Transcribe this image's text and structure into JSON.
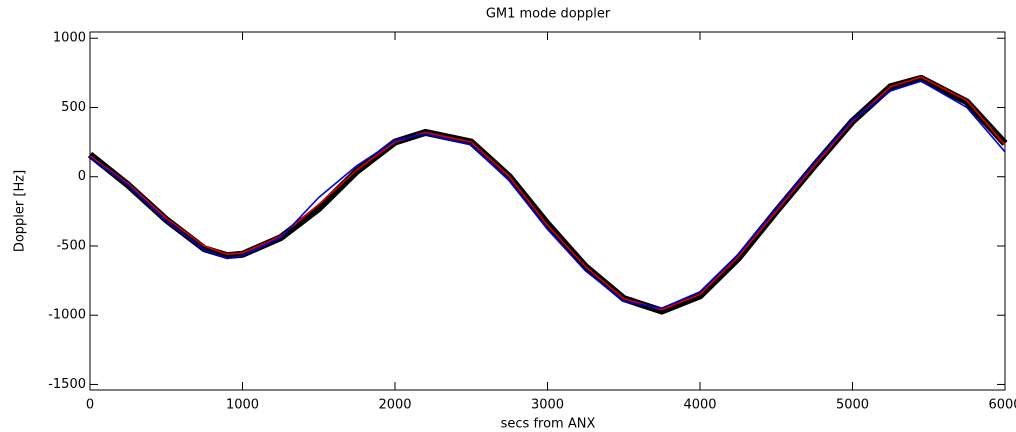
{
  "chart_data": {
    "type": "line",
    "title": "GM1 mode doppler",
    "x_label": "secs from ANX",
    "y_label": "Doppler [Hz]",
    "x": [
      0,
      250,
      500,
      750,
      900,
      1000,
      1250,
      1500,
      1750,
      2000,
      2200,
      2500,
      2750,
      3000,
      3250,
      3500,
      3750,
      4000,
      4250,
      4500,
      4750,
      5000,
      5250,
      5450,
      5750,
      6000
    ],
    "series": [
      {
        "color": "#000000",
        "values": [
          160,
          -60,
          -310,
          -520,
          -570,
          -560,
          -440,
          -230,
          40,
          250,
          320,
          250,
          0,
          -340,
          -650,
          -880,
          -970,
          -860,
          -590,
          -250,
          80,
          400,
          650,
          710,
          540,
          240
        ]
      },
      {
        "color": "#dd0000",
        "values": [
          150,
          -50,
          -300,
          -500,
          -560,
          -550,
          -430,
          -200,
          50,
          250,
          320,
          250,
          0,
          -350,
          -650,
          -880,
          -960,
          -850,
          -580,
          -250,
          80,
          400,
          650,
          720,
          550,
          230
        ]
      },
      {
        "color": "#0000dd",
        "values": [
          140,
          -60,
          -320,
          -530,
          -590,
          -570,
          -440,
          -150,
          80,
          260,
          310,
          230,
          -30,
          -380,
          -680,
          -900,
          -950,
          -830,
          -560,
          -230,
          100,
          410,
          620,
          690,
          500,
          180
        ]
      }
    ],
    "xlim": [
      0,
      6000
    ],
    "ylim": [
      -1540,
      1045
    ],
    "xticks": [
      0,
      1000,
      2000,
      3000,
      4000,
      5000,
      6000
    ],
    "yticks": [
      -1500,
      -1000,
      -500,
      0,
      500,
      1000
    ]
  }
}
